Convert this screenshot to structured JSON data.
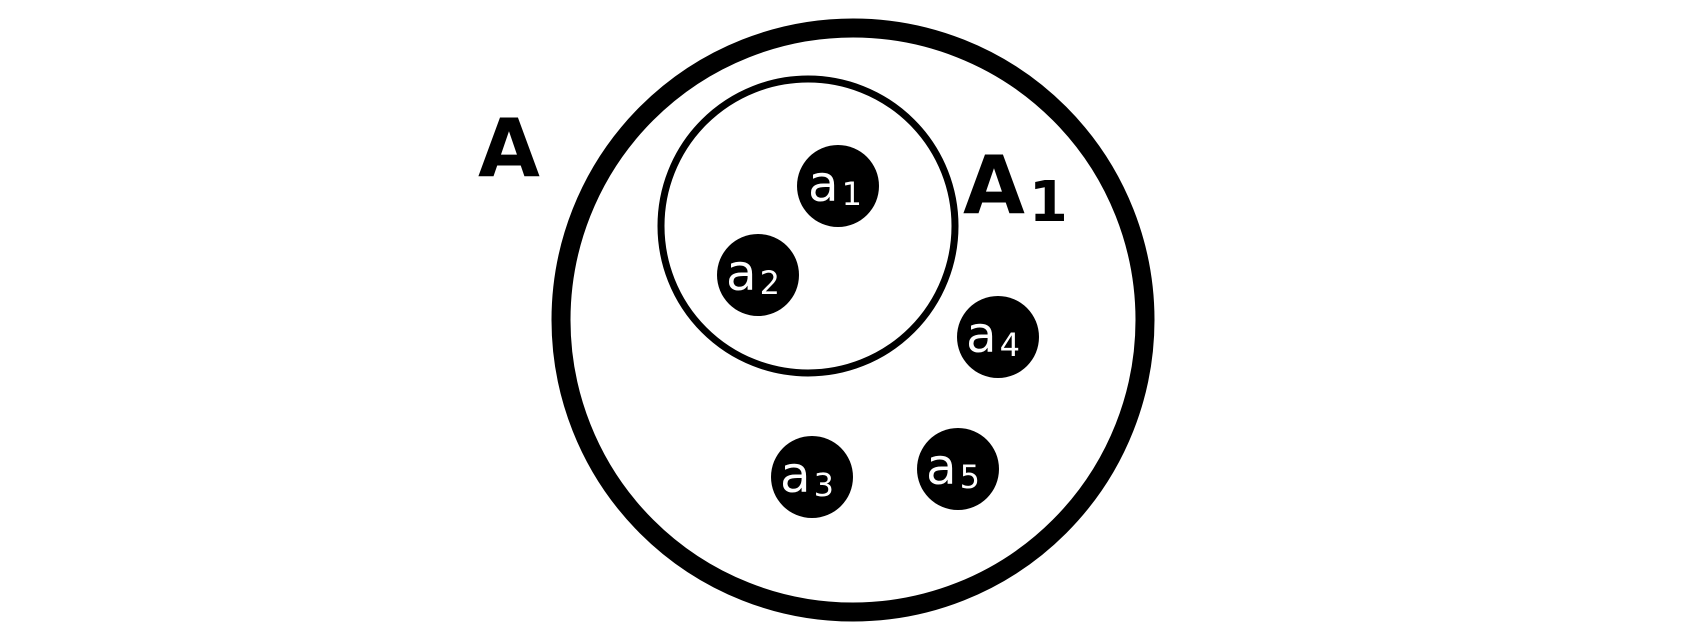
{
  "diagram": {
    "outer_set": {
      "name": "A",
      "subscript": ""
    },
    "inner_set": {
      "name": "A",
      "subscript": "1"
    },
    "elements": [
      {
        "id": "a1",
        "base": "a",
        "subscript": "1"
      },
      {
        "id": "a2",
        "base": "a",
        "subscript": "2"
      },
      {
        "id": "a4",
        "base": "a",
        "subscript": "4"
      },
      {
        "id": "a3",
        "base": "a",
        "subscript": "3"
      },
      {
        "id": "a5",
        "base": "a",
        "subscript": "5"
      }
    ],
    "colors": {
      "stroke": "#000000",
      "element_fill": "#000000",
      "element_text": "#ffffff",
      "background": "#ffffff"
    }
  }
}
